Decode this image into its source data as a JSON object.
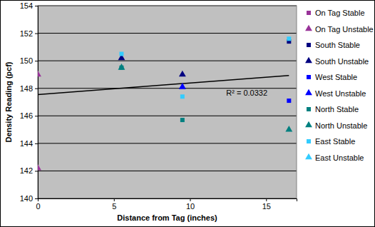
{
  "chart_data": {
    "type": "scatter",
    "x_label": "Distance from Tag (inches)",
    "y_label": "Density Reading (pcf)",
    "xlim": [
      0,
      17
    ],
    "xticks": [
      0,
      5,
      10,
      15
    ],
    "ylim": [
      140,
      154
    ],
    "yticks": [
      140,
      142,
      144,
      146,
      148,
      150,
      152,
      154
    ],
    "grid": true,
    "legend": "right",
    "series": [
      {
        "name": "On Tag Stable",
        "color": "#993399",
        "marker": "square",
        "x": [],
        "values": []
      },
      {
        "name": "On Tag Unstable",
        "color": "#993399",
        "marker": "triangle",
        "x": [
          0,
          0
        ],
        "values": [
          149.0,
          142.2
        ]
      },
      {
        "name": "South Stable",
        "color": "#000080",
        "marker": "square",
        "x": [
          16.5
        ],
        "values": [
          151.4
        ]
      },
      {
        "name": "South Unstable",
        "color": "#000080",
        "marker": "triangle",
        "x": [
          5.5,
          9.5
        ],
        "values": [
          150.2,
          149.0
        ]
      },
      {
        "name": "West Stable",
        "color": "#0000ff",
        "marker": "square",
        "x": [
          16.5
        ],
        "values": [
          147.1
        ]
      },
      {
        "name": "West Unstable",
        "color": "#0000ff",
        "marker": "triangle",
        "x": [
          9.5
        ],
        "values": [
          148.1
        ]
      },
      {
        "name": "North Stable",
        "color": "#008080",
        "marker": "square",
        "x": [
          5.5,
          9.5
        ],
        "values": [
          149.5,
          145.7
        ]
      },
      {
        "name": "North Unstable",
        "color": "#008080",
        "marker": "triangle",
        "x": [
          5.5,
          16.5
        ],
        "values": [
          149.5,
          145.0
        ]
      },
      {
        "name": "East Stable",
        "color": "#33ccff",
        "marker": "square",
        "x": [
          5.5,
          9.5,
          16.5
        ],
        "values": [
          150.5,
          147.4,
          151.6
        ]
      },
      {
        "name": "East Unstable",
        "color": "#33ccff",
        "marker": "triangle",
        "x": [],
        "values": []
      }
    ],
    "trendline": {
      "x": [
        0,
        16.5
      ],
      "values": [
        147.55,
        148.93
      ],
      "label": "R² = 0.0332"
    }
  }
}
